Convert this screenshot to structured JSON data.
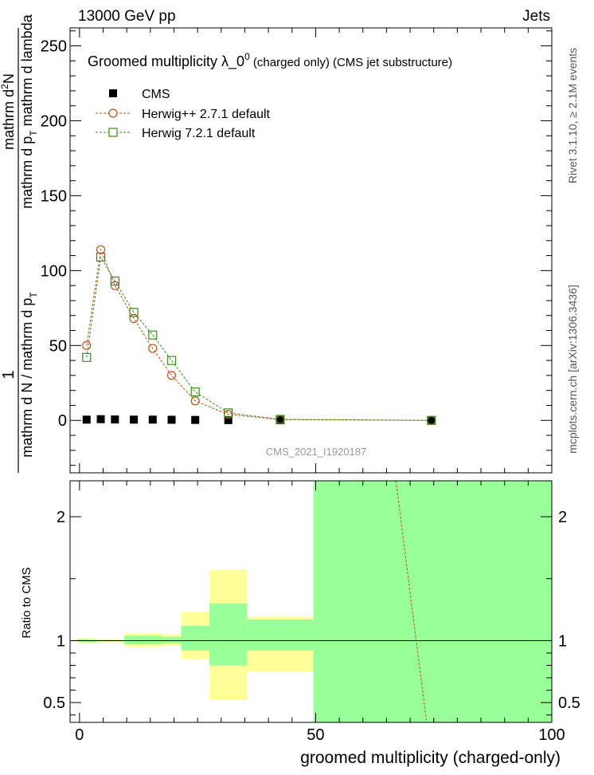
{
  "header": {
    "energy_label": "13000 GeV pp",
    "process_label": "Jets"
  },
  "side_labels": {
    "rivet": "Rivet 3.1.10, ≥ 2.1M events",
    "mcplots": "mcplots.cern.ch [arXiv:1306.3436]"
  },
  "colors": {
    "cms": "#000000",
    "herwigpp": "#b5541a",
    "herwig7": "#3a8a1a",
    "band_yellow": "#ffff99",
    "band_green": "#99ff99"
  },
  "chart_data": [
    {
      "type": "scatter",
      "title_main": "Groomed multiplicity  λ_0",
      "title_sup": "0",
      "title_rest": "(charged only) (CMS jet substructure)",
      "analysis_tag": "CMS_2021_I1920187",
      "ylabel": "1 / mathrm d N / mathrm d p_T  mathrm d²N / mathrm d p_T mathrm d lambda",
      "ylabel_parts": {
        "numerator_1": "1",
        "denominator_1": "mathrm d N / mathrm d p",
        "denominator_1_sub": "T",
        "numerator_2": "mathrm d",
        "numerator_2_sup": "2",
        "numerator_2_end": "N",
        "denominator_2": "mathrm d p",
        "denominator_2_sub": "T",
        "denominator_2_end": "mathrm d lambda"
      },
      "ylim": [
        -35,
        262
      ],
      "xlim": [
        -2,
        100
      ],
      "yticks": [
        0,
        50,
        100,
        150,
        200,
        250
      ],
      "series": [
        {
          "name": "CMS",
          "marker": "filled-square",
          "x": [
            1.5,
            4.5,
            7.5,
            11.5,
            15.5,
            19.5,
            24.5,
            31.5,
            42.5,
            74.5
          ],
          "y": [
            0.5,
            0.8,
            0.6,
            0.5,
            0.5,
            0.4,
            0.3,
            0.2,
            0.1,
            0.0
          ]
        },
        {
          "name": "Herwig++ 2.7.1 default",
          "marker": "open-circle",
          "x": [
            1.5,
            4.5,
            7.5,
            11.5,
            15.5,
            19.5,
            24.5,
            31.5,
            42.5,
            74.5
          ],
          "y": [
            50,
            114,
            90,
            68,
            48,
            30,
            13,
            4,
            0.5,
            0.0
          ]
        },
        {
          "name": "Herwig 7.2.1 default",
          "marker": "open-square",
          "x": [
            1.5,
            4.5,
            7.5,
            11.5,
            15.5,
            19.5,
            24.5,
            31.5,
            42.5,
            74.5
          ],
          "y": [
            42,
            109,
            93,
            72,
            57,
            40,
            19,
            5,
            0.7,
            0.0
          ]
        }
      ]
    },
    {
      "type": "area",
      "ylabel": "Ratio to CMS",
      "xlabel": "groomed multiplicity (charged-only)",
      "xlim": [
        -2,
        100
      ],
      "ylim": [
        0.34,
        2.29
      ],
      "yticks": [
        0.5,
        1,
        2
      ],
      "xticks": [
        0,
        50,
        100
      ],
      "reference_line": 1,
      "bins": [
        {
          "lo": -0.5,
          "hi": 3.5,
          "yellow": [
            0.98,
            1.02
          ],
          "green": [
            0.99,
            1.01
          ]
        },
        {
          "lo": 3.5,
          "hi": 9.5,
          "yellow": [
            0.99,
            1.01
          ],
          "green": [
            0.995,
            1.005
          ]
        },
        {
          "lo": 9.5,
          "hi": 17.5,
          "yellow": [
            0.95,
            1.06
          ],
          "green": [
            0.97,
            1.04
          ]
        },
        {
          "lo": 17.5,
          "hi": 21.5,
          "yellow": [
            0.96,
            1.05
          ],
          "green": [
            0.98,
            1.03
          ]
        },
        {
          "lo": 21.5,
          "hi": 27.5,
          "yellow": [
            0.85,
            1.23
          ],
          "green": [
            0.92,
            1.12
          ]
        },
        {
          "lo": 27.5,
          "hi": 35.5,
          "yellow": [
            0.52,
            1.57
          ],
          "green": [
            0.8,
            1.3
          ]
        },
        {
          "lo": 35.5,
          "hi": 49.5,
          "yellow": [
            0.75,
            1.19
          ],
          "green": [
            0.92,
            1.17
          ]
        },
        {
          "lo": 49.5,
          "hi": 100,
          "yellow": [
            0.3,
            2.4
          ],
          "green": [
            0.3,
            2.4
          ]
        }
      ],
      "herwigpp_ratio_line": {
        "x": [
          67,
          73.5
        ],
        "y": [
          2.4,
          0.34
        ]
      }
    }
  ]
}
